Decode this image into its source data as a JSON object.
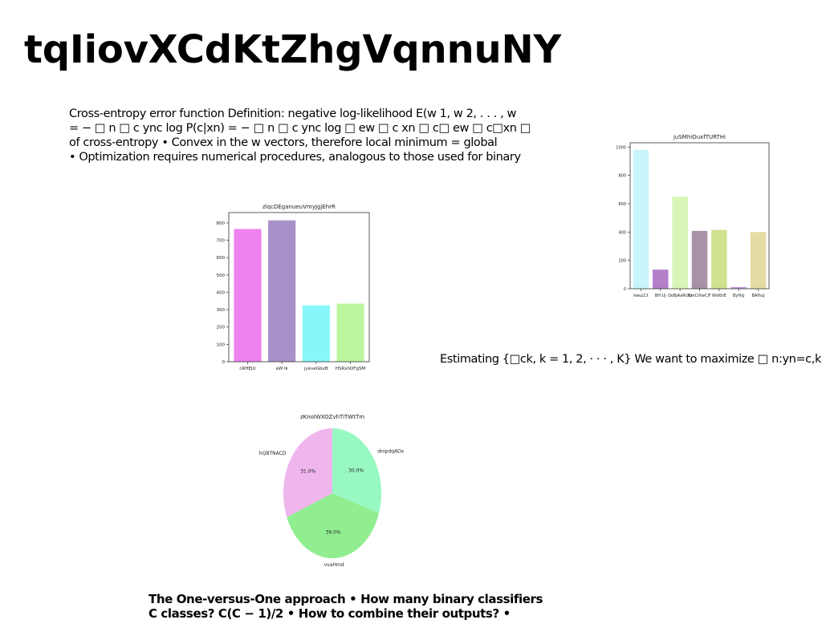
{
  "title": "tqIiovXCdKtZhgVqnnuNY",
  "paragraphs": {
    "p1": [
      "Cross-entropy error function Definition: negative log-likelihood E(w 1, w 2, . . . , w",
      "= − □ n □ c ync log P(c|xn) = − □ n □ c ync log □ ew □ c xn □ c□ ew □ c□xn □",
      "of cross-entropy • Convex in the w vectors, therefore local minimum = global",
      "• Optimization requires numerical procedures, analogous to those used for binary"
    ],
    "p2": [
      "Estimating {□ck, k = 1, 2, · · · , K} We want to maximize □ n:yn=c,k"
    ],
    "p3": [
      "The One-versus-One approach • How many binary classifiers",
      "C classes? C(C − 1)/2 • How to combine their outputs? •"
    ]
  },
  "chart_data": [
    {
      "type": "bar",
      "title": "zlqcDEganueuVmyJgjEhrR",
      "categories": [
        "cRHEJU",
        "aW Ik",
        "jyeveGbxB",
        "HSRxhDFgSM"
      ],
      "values": [
        765,
        815,
        325,
        335
      ],
      "colors": [
        "#ee82ee",
        "#a891c8",
        "#87f7fb",
        "#bbf7a0"
      ],
      "ylim": [
        0,
        860
      ],
      "yticks": [
        0,
        100,
        200,
        300,
        400,
        500,
        600,
        700,
        800
      ]
    },
    {
      "type": "bar",
      "title": "juSMhiOuxfTURTHi",
      "categories": [
        "kwuLCt",
        "BH Uj",
        "OoBjAaRtXu",
        "BmCIXwClF",
        "WsfdrE",
        "ByHxj",
        "BAlhuJ"
      ],
      "values": [
        980,
        135,
        650,
        408,
        415,
        12,
        400
      ],
      "colors": [
        "#c9f5fb",
        "#b47fc8",
        "#d8f6b8",
        "#a892a8",
        "#cfe290",
        "#c89be0",
        "#e4dca4"
      ],
      "ylim": [
        0,
        1030
      ],
      "yticks": [
        0,
        200,
        400,
        600,
        800,
        1000
      ]
    },
    {
      "type": "pie",
      "title": "zKnolWXOZvhTiTWtTm",
      "labels": [
        "dnipdqAOx",
        "vvaHmd",
        "hQBTNACD"
      ],
      "values": [
        30.0,
        39.0,
        31.0
      ],
      "pct_labels": [
        "30.0%",
        "39.0%",
        "31.0%"
      ],
      "colors": [
        "#98f8c2",
        "#90ee90",
        "#eeb6ec"
      ]
    }
  ]
}
